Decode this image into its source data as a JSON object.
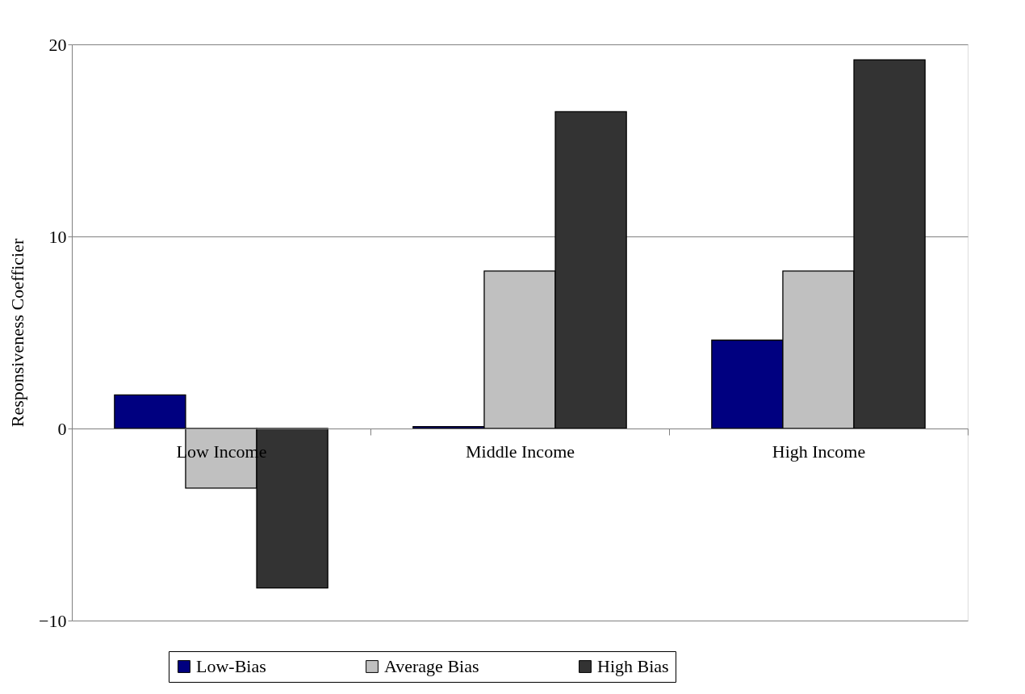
{
  "chart_data": {
    "type": "bar",
    "ylabel": "Responsiveness Coefficier",
    "categories": [
      "Low Income",
      "Middle Income",
      "High Income"
    ],
    "series": [
      {
        "name": "Low-Bias",
        "color": "#000080",
        "values": [
          1.75,
          0.1,
          4.6
        ]
      },
      {
        "name": "Average Bias",
        "color": "#c0c0c0",
        "values": [
          -3.1,
          8.2,
          8.2
        ]
      },
      {
        "name": "High Bias",
        "color": "#333333",
        "values": [
          -8.3,
          16.5,
          19.2
        ]
      }
    ],
    "ylim": [
      -10,
      20
    ],
    "yticks": [
      -10,
      0,
      10,
      20
    ],
    "grid": "y",
    "legend": "bottom"
  }
}
